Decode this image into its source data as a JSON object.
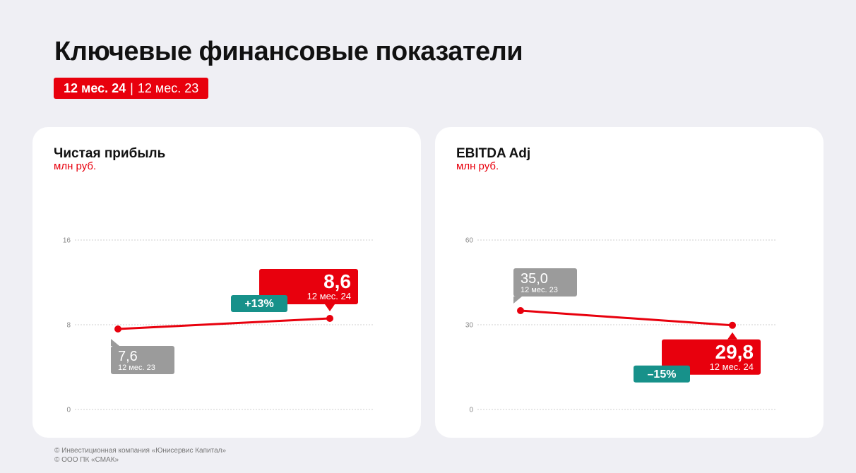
{
  "page": {
    "title": "Ключевые финансовые показатели",
    "period_current": "12 мес. 24",
    "period_separator": "|",
    "period_previous": "12 мес. 23"
  },
  "colors": {
    "accent": "#e8000d",
    "previous_label_bg": "#9b9b9b",
    "change_badge_bg": "#17918a",
    "grid": "#cfcfcf",
    "card_bg": "#ffffff",
    "page_bg": "#efeff4"
  },
  "chart_data": [
    {
      "type": "line",
      "title": "Чистая прибыль",
      "ylabel": "млн руб.",
      "ylim": [
        0,
        16
      ],
      "yticks": [
        0,
        8,
        16
      ],
      "yticks_labels": [
        "0",
        "8",
        "16"
      ],
      "grid": true,
      "points": [
        {
          "period": "12 мес. 23",
          "value": 7.6,
          "value_label": "7,6"
        },
        {
          "period": "12 мес. 24",
          "value": 8.6,
          "value_label": "8,6"
        }
      ],
      "change": "+13%"
    },
    {
      "type": "line",
      "title": "EBITDA Adj",
      "ylabel": "млн руб.",
      "ylim": [
        0,
        60
      ],
      "yticks": [
        0,
        30,
        60
      ],
      "yticks_labels": [
        "0",
        "30",
        "60"
      ],
      "grid": true,
      "points": [
        {
          "period": "12 мес. 23",
          "value": 35.0,
          "value_label": "35,0"
        },
        {
          "period": "12 мес. 24",
          "value": 29.8,
          "value_label": "29,8"
        }
      ],
      "change": "–15%"
    }
  ],
  "footer": {
    "line1": "© Инвестиционная компания «Юнисервис Капитал»",
    "line2": "© ООО ПК «СМАК»"
  }
}
